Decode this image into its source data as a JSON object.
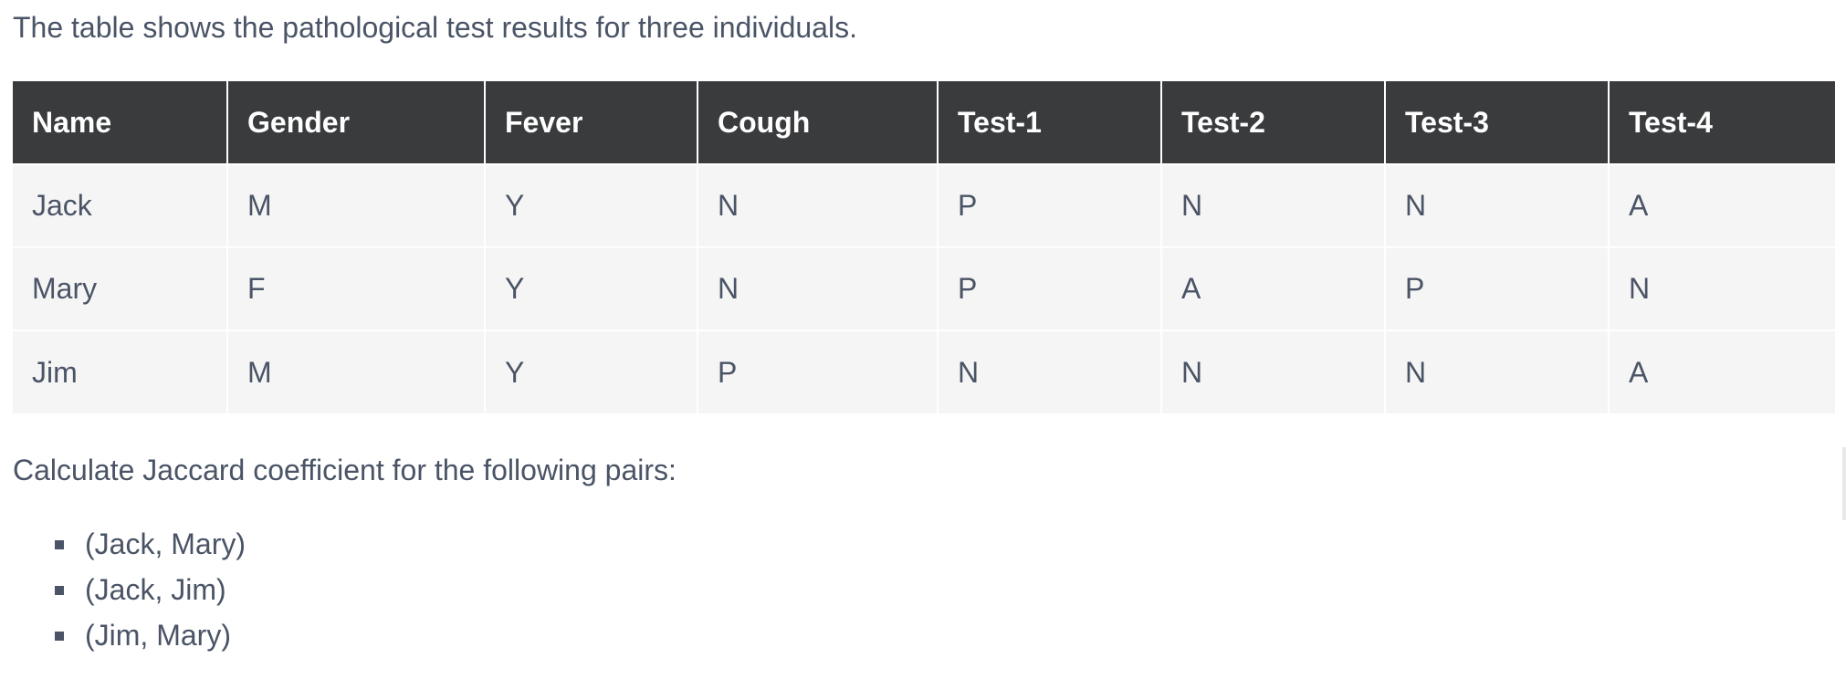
{
  "intro_text": "The table shows the pathological test results for three individuals.",
  "table": {
    "headers": [
      "Name",
      "Gender",
      "Fever",
      "Cough",
      "Test-1",
      "Test-2",
      "Test-3",
      "Test-4"
    ],
    "rows": [
      [
        "Jack",
        "M",
        "Y",
        "N",
        "P",
        "N",
        "N",
        "A"
      ],
      [
        "Mary",
        "F",
        "Y",
        "N",
        "P",
        "A",
        "P",
        "N"
      ],
      [
        "Jim",
        "M",
        "Y",
        "P",
        "N",
        "N",
        "N",
        "A"
      ]
    ]
  },
  "question_text": "Calculate Jaccard coefficient for the following pairs:",
  "pairs": [
    "(Jack, Mary)",
    "(Jack, Jim)",
    "(Jim, Mary)"
  ],
  "colors": {
    "header_bg": "#3a3b3d",
    "header_text": "#ffffff",
    "cell_bg": "#f5f5f5",
    "body_text": "#4a5466"
  }
}
